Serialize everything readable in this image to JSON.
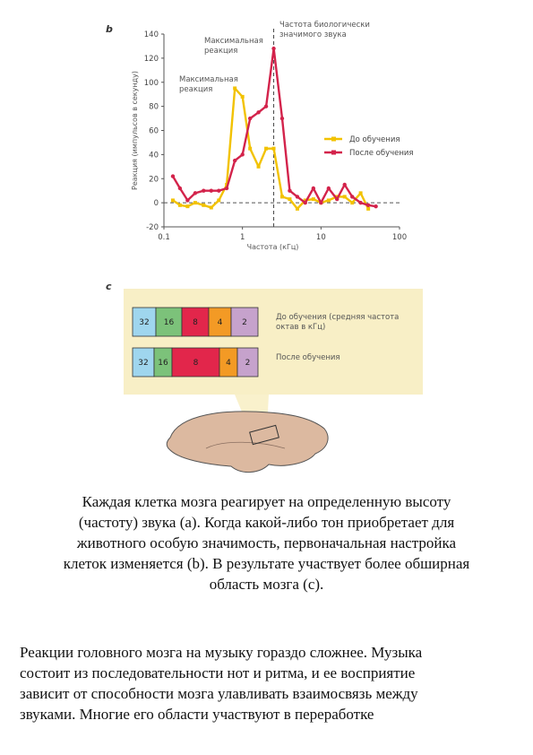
{
  "panel_labels": {
    "b": "b",
    "c": "c"
  },
  "chart_data": {
    "type": "line",
    "x_label": "Частота (кГц)",
    "y_label": "Реакция (импульсов в секунду)",
    "xlog": true,
    "xlim": [
      0.1,
      100
    ],
    "xticks": [
      0.1,
      1,
      10,
      100
    ],
    "ylim": [
      -20,
      140
    ],
    "yticks": [
      -20,
      0,
      20,
      40,
      60,
      80,
      100,
      120,
      140
    ],
    "reference_x": 2.5,
    "reference_y": 0,
    "annotations": [
      {
        "lines": [
          "Максимальная",
          "реакция"
        ]
      },
      {
        "lines": [
          "Максимальная",
          "реакция"
        ]
      },
      {
        "lines": [
          "Частота биологически",
          "значимого звука"
        ]
      }
    ],
    "legend": "right",
    "x": [
      0.13,
      0.16,
      0.2,
      0.25,
      0.32,
      0.4,
      0.5,
      0.63,
      0.8,
      1.0,
      1.25,
      1.6,
      2.0,
      2.5,
      3.2,
      4,
      5,
      6.3,
      8,
      10,
      12.5,
      16,
      20,
      25,
      32,
      40,
      50
    ],
    "series": [
      {
        "name": "До обучения",
        "color": "#f2c200",
        "marker": "square",
        "values": [
          2,
          -2,
          -3,
          0,
          -2,
          -4,
          2,
          15,
          95,
          88,
          45,
          30,
          45,
          45,
          5,
          3,
          -5,
          2,
          3,
          0,
          2,
          5,
          5,
          0,
          8,
          -5,
          null
        ]
      },
      {
        "name": "После обучения",
        "color": "#d3234b",
        "marker": "circle",
        "values": [
          22,
          12,
          2,
          8,
          10,
          10,
          10,
          12,
          35,
          40,
          70,
          75,
          80,
          128,
          70,
          10,
          5,
          0,
          12,
          0,
          12,
          3,
          15,
          5,
          0,
          -2,
          -3
        ]
      }
    ]
  },
  "figure_c": {
    "rows": [
      {
        "label": [
          "До обучения (средняя частота",
          "октав в кГц)"
        ],
        "segments": [
          {
            "value": 32,
            "color": "#9fd6ee"
          },
          {
            "value": 16,
            "color": "#7cc27a"
          },
          {
            "value": 8,
            "color": "#e2264b"
          },
          {
            "value": 4,
            "color": "#f39a25"
          },
          {
            "value": 2,
            "color": "#c6a2cc"
          }
        ]
      },
      {
        "label": [
          "После обучения"
        ],
        "segments": [
          {
            "value": 32,
            "color": "#9fd6ee"
          },
          {
            "value": 16,
            "color": "#7cc27a"
          },
          {
            "value": 8,
            "color": "#e2264b"
          },
          {
            "value": 4,
            "color": "#f39a25"
          },
          {
            "value": 2,
            "color": "#c6a2cc"
          }
        ]
      }
    ]
  },
  "caption": {
    "lines": [
      "Каждая клетка мозга реагирует на определенную высоту",
      "(частоту) звука (a). Когда какой-либо тон приобретает для",
      "животного особую значимость, первоначальная настройка",
      "клеток изменяется (b). В результате участвует более обширная",
      "область мозга (c)."
    ]
  },
  "body": {
    "lines": [
      "Реакции головного мозга на музыку гораздо сложнее. Музыка",
      "состоит из последовательности нот и ритма, и ее восприятие",
      "зависит от способности мозга улавливать взаимосвязь между",
      "звуками. Многие его области участвуют в переработке"
    ]
  }
}
